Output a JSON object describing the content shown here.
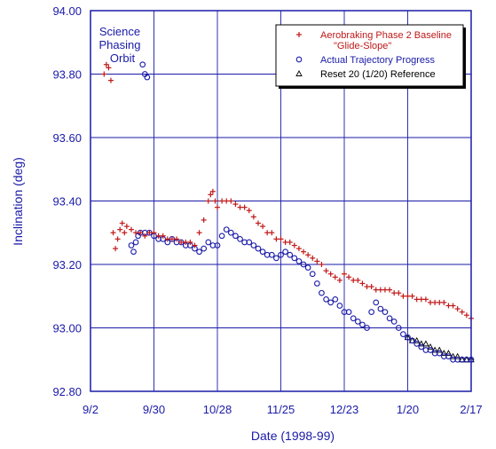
{
  "chart_data": {
    "type": "scatter",
    "title": "",
    "xlabel": "Date (1998-99)",
    "ylabel": "Inclination (deg)",
    "x_tick_labels": [
      "9/2",
      "9/30",
      "10/28",
      "11/25",
      "12/23",
      "1/20",
      "2/17"
    ],
    "x_tick_days": [
      0,
      28,
      56,
      84,
      112,
      140,
      168
    ],
    "y_tick_labels": [
      "92.80",
      "93.00",
      "93.20",
      "93.40",
      "93.60",
      "93.80",
      "94.00"
    ],
    "ylim": [
      92.8,
      94.0
    ],
    "xlim_days": [
      0,
      168
    ],
    "grid": true,
    "legend_position": "top-right",
    "annotation": [
      "Science",
      "Phasing",
      "Orbit"
    ],
    "legend": [
      {
        "marker": "+",
        "color": "#c01818",
        "lines": [
          "Aerobraking Phase 2 Baseline",
          "\"Glide-Slope\""
        ]
      },
      {
        "marker": "o",
        "color": "#1a1aa8",
        "lines": [
          "Actual Trajectory Progress"
        ]
      },
      {
        "marker": "triangle",
        "color": "#000000",
        "lines": [
          "Reset 20 (1/20) Reference"
        ]
      }
    ],
    "series": [
      {
        "name": "Aerobraking Phase 2 Baseline \"Glide-Slope\"",
        "marker": "plus",
        "color": "#c01818",
        "x_day": [
          6,
          7,
          8,
          9,
          10,
          11,
          12,
          13,
          14,
          15,
          16,
          18,
          20,
          22,
          24,
          26,
          28,
          30,
          32,
          34,
          36,
          38,
          40,
          42,
          44,
          46,
          48,
          50,
          52,
          53,
          54,
          55,
          56,
          58,
          60,
          62,
          64,
          66,
          68,
          70,
          72,
          74,
          76,
          78,
          80,
          82,
          84,
          86,
          88,
          90,
          92,
          94,
          96,
          98,
          100,
          102,
          104,
          106,
          108,
          110,
          112,
          114,
          116,
          118,
          120,
          122,
          124,
          126,
          128,
          130,
          132,
          134,
          136,
          138,
          140,
          142,
          144,
          146,
          148,
          150,
          152,
          154,
          156,
          158,
          160,
          162,
          164,
          166,
          168
        ],
        "y": [
          93.8,
          93.83,
          93.82,
          93.78,
          93.3,
          93.25,
          93.28,
          93.31,
          93.33,
          93.3,
          93.32,
          93.31,
          93.3,
          93.3,
          93.29,
          93.3,
          93.3,
          93.29,
          93.29,
          93.28,
          93.28,
          93.28,
          93.27,
          93.27,
          93.27,
          93.26,
          93.3,
          93.34,
          93.4,
          93.42,
          93.43,
          93.4,
          93.38,
          93.4,
          93.4,
          93.4,
          93.39,
          93.38,
          93.38,
          93.37,
          93.35,
          93.33,
          93.32,
          93.3,
          93.3,
          93.28,
          93.28,
          93.27,
          93.27,
          93.26,
          93.25,
          93.24,
          93.23,
          93.22,
          93.21,
          93.2,
          93.18,
          93.17,
          93.16,
          93.15,
          93.17,
          93.16,
          93.15,
          93.15,
          93.14,
          93.13,
          93.13,
          93.12,
          93.12,
          93.12,
          93.12,
          93.11,
          93.11,
          93.1,
          93.1,
          93.1,
          93.09,
          93.09,
          93.09,
          93.08,
          93.08,
          93.08,
          93.08,
          93.07,
          93.07,
          93.06,
          93.05,
          93.04,
          93.03
        ]
      },
      {
        "name": "Actual Trajectory Progress",
        "marker": "circle",
        "color": "#1a1aa8",
        "x_day": [
          23,
          24,
          25,
          18,
          19,
          20,
          21,
          22,
          24,
          26,
          28,
          30,
          32,
          34,
          36,
          38,
          40,
          42,
          44,
          46,
          48,
          50,
          52,
          54,
          56,
          58,
          60,
          62,
          64,
          66,
          68,
          70,
          72,
          74,
          76,
          78,
          80,
          82,
          84,
          86,
          88,
          90,
          92,
          94,
          96,
          98,
          100,
          102,
          104,
          106,
          108,
          110,
          112,
          114,
          116,
          118,
          120,
          122,
          124,
          126,
          128,
          130,
          132,
          134,
          136,
          138,
          140,
          142,
          144,
          146,
          148,
          150,
          152,
          154,
          156,
          158,
          160,
          162,
          164,
          166,
          168
        ],
        "y": [
          93.83,
          93.8,
          93.79,
          93.26,
          93.24,
          93.27,
          93.29,
          93.3,
          93.3,
          93.3,
          93.29,
          93.28,
          93.28,
          93.27,
          93.28,
          93.27,
          93.27,
          93.26,
          93.26,
          93.25,
          93.24,
          93.25,
          93.27,
          93.26,
          93.26,
          93.29,
          93.31,
          93.3,
          93.29,
          93.28,
          93.27,
          93.27,
          93.26,
          93.25,
          93.24,
          93.23,
          93.23,
          93.22,
          93.23,
          93.24,
          93.23,
          93.22,
          93.21,
          93.2,
          93.19,
          93.17,
          93.14,
          93.11,
          93.09,
          93.08,
          93.09,
          93.07,
          93.05,
          93.05,
          93.03,
          93.02,
          93.01,
          93.0,
          93.05,
          93.08,
          93.06,
          93.05,
          93.03,
          93.02,
          93.0,
          92.98,
          92.97,
          92.96,
          92.95,
          92.94,
          92.93,
          92.93,
          92.92,
          92.92,
          92.91,
          92.91,
          92.9,
          92.9,
          92.9,
          92.9,
          92.9
        ]
      },
      {
        "name": "Reset 20 (1/20) Reference",
        "marker": "triangle",
        "color": "#000000",
        "x_day": [
          140,
          142,
          144,
          146,
          148,
          150,
          152,
          154,
          156,
          158,
          160,
          162,
          164,
          166,
          168
        ],
        "y": [
          92.97,
          92.96,
          92.96,
          92.95,
          92.95,
          92.94,
          92.93,
          92.93,
          92.92,
          92.92,
          92.91,
          92.91,
          92.9,
          92.9,
          92.9
        ]
      }
    ]
  }
}
